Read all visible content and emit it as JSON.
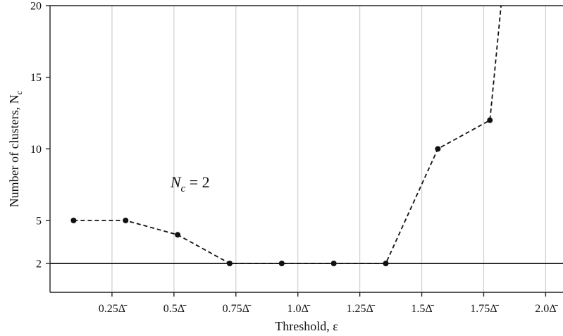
{
  "chart_data": {
    "type": "line",
    "xlabel": "Threshold, ε",
    "ylabel": "Number of clusters, N",
    "ylabel_sub": "c",
    "xlim": [
      0.0,
      2.07
    ],
    "ylim": [
      0,
      20
    ],
    "grid": "vertical",
    "x_ticks": [
      {
        "value": 0.25,
        "label": "0.25Δ̄"
      },
      {
        "value": 0.5,
        "label": "0.5Δ̄"
      },
      {
        "value": 0.75,
        "label": "0.75Δ̄"
      },
      {
        "value": 1.0,
        "label": "1.0Δ̄"
      },
      {
        "value": 1.25,
        "label": "1.25Δ̄"
      },
      {
        "value": 1.5,
        "label": "1.5Δ̄"
      },
      {
        "value": 1.75,
        "label": "1.75Δ̄"
      },
      {
        "value": 2.0,
        "label": "2.0Δ̄"
      }
    ],
    "y_ticks": [
      {
        "value": 2,
        "label": "2"
      },
      {
        "value": 5,
        "label": "5"
      },
      {
        "value": 10,
        "label": "10"
      },
      {
        "value": 15,
        "label": "15"
      },
      {
        "value": 20,
        "label": "20"
      }
    ],
    "series": [
      {
        "style": "dashed-with-markers",
        "color": "#111111",
        "points": [
          {
            "x": 0.095,
            "y": 5
          },
          {
            "x": 0.305,
            "y": 5
          },
          {
            "x": 0.515,
            "y": 4
          },
          {
            "x": 0.725,
            "y": 2
          },
          {
            "x": 0.935,
            "y": 2
          },
          {
            "x": 1.145,
            "y": 2
          },
          {
            "x": 1.355,
            "y": 2
          },
          {
            "x": 1.565,
            "y": 10
          },
          {
            "x": 1.775,
            "y": 12
          },
          {
            "x": 1.82,
            "y": 20,
            "marker": false
          }
        ]
      }
    ],
    "reference_line": {
      "y": 2,
      "color": "#111111"
    },
    "annotation": {
      "text": "N",
      "sub": "c",
      "rest": " = 2",
      "x": 0.5,
      "y": 7.3
    }
  }
}
